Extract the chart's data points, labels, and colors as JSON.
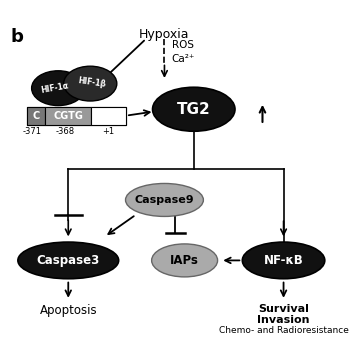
{
  "title_label": "b",
  "hypoxia_label": "Hypoxia",
  "ros_label": "ROS",
  "ca_label": "Ca²⁺",
  "tg2_label": "TG2",
  "caspase9_label": "Caspase9",
  "caspase3_label": "Caspase3",
  "iaps_label": "IAPs",
  "nfkb_label": "NF-κB",
  "apoptosis_label": "Apoptosis",
  "survival_line1": "Survival",
  "survival_line2": "Invasion",
  "survival_line3": "Chemo- and Radioresistance",
  "c_label": "C",
  "cgtg_label": "CGTG",
  "pos_371": "-371",
  "pos_368": "-368",
  "pos_1": "+1",
  "hif1a_label": "HIF-1α",
  "hif1b_label": "HIF-1β",
  "black": "#111111",
  "dark_gray": "#2a2a2a",
  "gray_ellipse": "#aaaaaa",
  "c_box_color": "#777777",
  "cgtg_box_color": "#999999"
}
